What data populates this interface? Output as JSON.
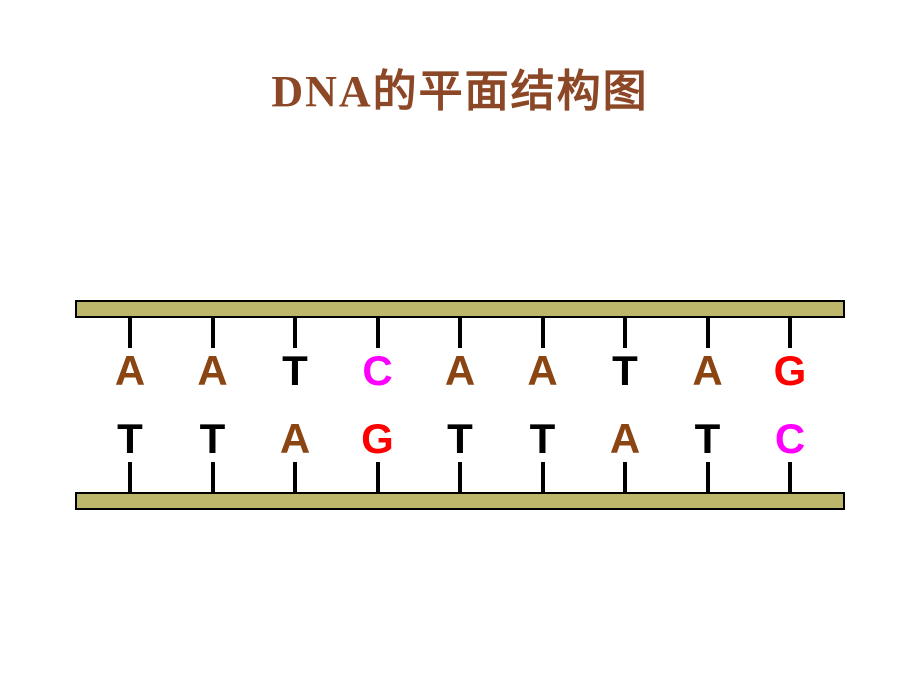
{
  "title": {
    "text": "DNA的平面结构图",
    "color": "#8b4726",
    "fontsize": 44
  },
  "diagram": {
    "type": "infographic",
    "backbone_fill": "#bdb76b",
    "backbone_border": "#000000",
    "tick_color": "#000000",
    "background_color": "#ffffff",
    "base_colors": {
      "A": "#8b4513",
      "T": "#000000",
      "C": "#ff00ff",
      "G": "#ff0000"
    },
    "top_strand": [
      {
        "base": "A",
        "color": "#8b4513"
      },
      {
        "base": "A",
        "color": "#8b4513"
      },
      {
        "base": "T",
        "color": "#000000"
      },
      {
        "base": "C",
        "color": "#ff00ff"
      },
      {
        "base": "A",
        "color": "#8b4513"
      },
      {
        "base": "A",
        "color": "#8b4513"
      },
      {
        "base": "T",
        "color": "#000000"
      },
      {
        "base": "A",
        "color": "#8b4513"
      },
      {
        "base": "G",
        "color": "#ff0000"
      }
    ],
    "bottom_strand": [
      {
        "base": "T",
        "color": "#000000"
      },
      {
        "base": "T",
        "color": "#000000"
      },
      {
        "base": "A",
        "color": "#8b4513"
      },
      {
        "base": "G",
        "color": "#ff0000"
      },
      {
        "base": "T",
        "color": "#000000"
      },
      {
        "base": "T",
        "color": "#000000"
      },
      {
        "base": "A",
        "color": "#8b4513"
      },
      {
        "base": "T",
        "color": "#000000"
      },
      {
        "base": "C",
        "color": "#ff00ff"
      }
    ]
  }
}
